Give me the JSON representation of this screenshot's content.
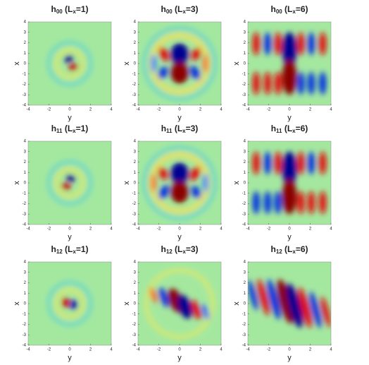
{
  "chart_data": [
    {
      "type": "heatmap",
      "title": [
        "h",
        "00",
        " (L",
        "x",
        "=1)"
      ],
      "x_label": "y",
      "y_label": "x",
      "xlim": [
        -4,
        4
      ],
      "ylim": [
        -4,
        4
      ],
      "xticks": [
        -4,
        -2,
        0,
        2,
        4
      ],
      "yticks": [
        -4,
        -3,
        -2,
        -1,
        0,
        1,
        2,
        3,
        4
      ]
    },
    {
      "type": "heatmap",
      "title": [
        "h",
        "00",
        " (L",
        "x",
        "=3)"
      ],
      "x_label": "y",
      "y_label": "x",
      "xlim": [
        -4,
        4
      ],
      "ylim": [
        -4,
        4
      ],
      "xticks": [
        -4,
        -2,
        0,
        2,
        4
      ],
      "yticks": [
        -4,
        -3,
        -2,
        -1,
        0,
        1,
        2,
        3,
        4
      ]
    },
    {
      "type": "heatmap",
      "title": [
        "h",
        "00",
        " (L",
        "x",
        "=6)"
      ],
      "x_label": "y",
      "y_label": "x",
      "xlim": [
        -4,
        4
      ],
      "ylim": [
        -4,
        4
      ],
      "xticks": [
        -4,
        -2,
        0,
        2,
        4
      ],
      "yticks": [
        -4,
        -3,
        -2,
        -1,
        0,
        1,
        2,
        3,
        4
      ]
    },
    {
      "type": "heatmap",
      "title": [
        "h",
        "11",
        " (L",
        "x",
        "=1)"
      ],
      "x_label": "y",
      "y_label": "x",
      "xlim": [
        -4,
        4
      ],
      "ylim": [
        -4,
        4
      ],
      "xticks": [
        -4,
        -2,
        0,
        2,
        4
      ],
      "yticks": [
        -4,
        -3,
        -2,
        -1,
        0,
        1,
        2,
        3,
        4
      ]
    },
    {
      "type": "heatmap",
      "title": [
        "h",
        "11",
        " (L",
        "x",
        "=3)"
      ],
      "x_label": "y",
      "y_label": "x",
      "xlim": [
        -4,
        4
      ],
      "ylim": [
        -4,
        4
      ],
      "xticks": [
        -4,
        -2,
        0,
        2,
        4
      ],
      "yticks": [
        -4,
        -3,
        -2,
        -1,
        0,
        1,
        2,
        3,
        4
      ]
    },
    {
      "type": "heatmap",
      "title": [
        "h",
        "11",
        " (L",
        "x",
        "=6)"
      ],
      "x_label": "y",
      "y_label": "x",
      "xlim": [
        -4,
        4
      ],
      "ylim": [
        -4,
        4
      ],
      "xticks": [
        -4,
        -2,
        0,
        2,
        4
      ],
      "yticks": [
        -4,
        -3,
        -2,
        -1,
        0,
        1,
        2,
        3,
        4
      ]
    },
    {
      "type": "heatmap",
      "title": [
        "h",
        "12",
        " (L",
        "x",
        "=1)"
      ],
      "x_label": "y",
      "y_label": "x",
      "xlim": [
        -4,
        4
      ],
      "ylim": [
        -4,
        4
      ],
      "xticks": [
        -4,
        -2,
        0,
        2,
        4
      ],
      "yticks": [
        -4,
        -3,
        -2,
        -1,
        0,
        1,
        2,
        3,
        4
      ]
    },
    {
      "type": "heatmap",
      "title": [
        "h",
        "12",
        " (L",
        "x",
        "=3)"
      ],
      "x_label": "y",
      "y_label": "x",
      "xlim": [
        -4,
        4
      ],
      "ylim": [
        -4,
        4
      ],
      "xticks": [
        -4,
        -2,
        0,
        2,
        4
      ],
      "yticks": [
        -4,
        -3,
        -2,
        -1,
        0,
        1,
        2,
        3,
        4
      ]
    },
    {
      "type": "heatmap",
      "title": [
        "h",
        "12",
        " (L",
        "x",
        "=6)"
      ],
      "x_label": "y",
      "y_label": "x",
      "xlim": [
        -4,
        4
      ],
      "ylim": [
        -4,
        4
      ],
      "xticks": [
        -4,
        -2,
        0,
        2,
        4
      ],
      "yticks": [
        -4,
        -3,
        -2,
        -1,
        0,
        1,
        2,
        3,
        4
      ]
    }
  ]
}
